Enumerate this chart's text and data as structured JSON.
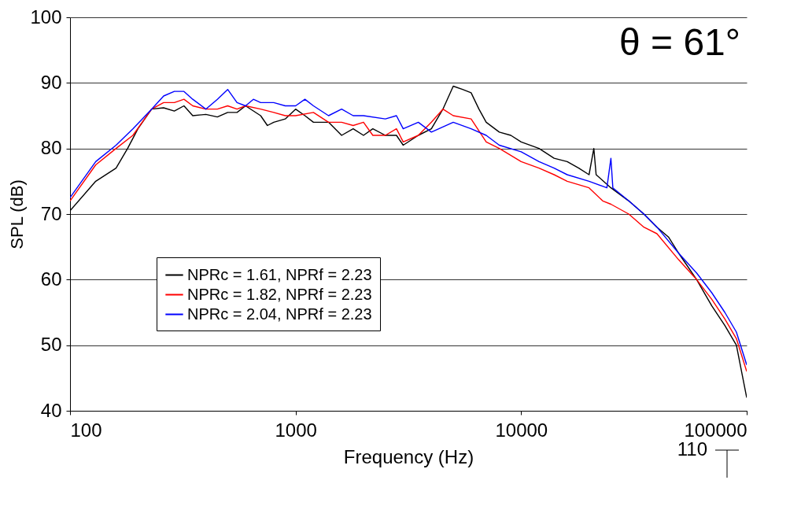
{
  "chart_data": {
    "type": "line",
    "title": "θ = 61°",
    "xlabel": "Frequency (Hz)",
    "ylabel": "SPL (dB)",
    "log": "x",
    "xlim": [
      100,
      100000
    ],
    "xticks": [
      100,
      1000,
      10000,
      100000
    ],
    "ylim": [
      40,
      100
    ],
    "yticks": [
      40,
      50,
      60,
      70,
      80,
      90,
      100
    ],
    "grid": "y",
    "legend": "bottom left",
    "line_style": "solid",
    "marker": "none",
    "annotations": [
      "110"
    ],
    "series": [
      {
        "name": "NPRc = 1.61, NPRf = 2.23",
        "color": "#000000",
        "x": [
          100,
          130,
          160,
          180,
          200,
          230,
          260,
          290,
          320,
          350,
          400,
          450,
          500,
          550,
          600,
          700,
          750,
          800,
          900,
          1000,
          1100,
          1200,
          1400,
          1600,
          1800,
          2000,
          2200,
          2500,
          2800,
          3000,
          3500,
          4000,
          4500,
          5000,
          5500,
          6000,
          6500,
          7000,
          8000,
          9000,
          10000,
          12000,
          14000,
          16000,
          18000,
          20000,
          21000,
          21500,
          25000,
          30000,
          35000,
          40000,
          45000,
          50000,
          60000,
          70000,
          80000,
          90000,
          100000
        ],
        "values": [
          70.5,
          75,
          77,
          80,
          83,
          86,
          86.2,
          85.7,
          86.5,
          85,
          85.2,
          84.8,
          85.5,
          85.5,
          86.5,
          85,
          83.5,
          84,
          84.5,
          86,
          85,
          84,
          84,
          82,
          83,
          82,
          83,
          82,
          82,
          80.5,
          82,
          83,
          86,
          89.5,
          89,
          88.5,
          86,
          84,
          82.5,
          82,
          81,
          80,
          78.5,
          78,
          77,
          76,
          80,
          76,
          74,
          72,
          70,
          68,
          66.5,
          64,
          60,
          56,
          53,
          50,
          42
        ]
      },
      {
        "name": "NPRc = 1.82, NPRf = 2.23",
        "color": "#ff0000",
        "x": [
          100,
          130,
          160,
          190,
          230,
          260,
          290,
          320,
          350,
          400,
          450,
          500,
          550,
          600,
          700,
          800,
          900,
          1000,
          1200,
          1400,
          1600,
          1800,
          2000,
          2200,
          2500,
          2800,
          3000,
          3500,
          4000,
          4500,
          5000,
          6000,
          7000,
          8000,
          10000,
          12000,
          14000,
          16000,
          20000,
          23000,
          25000,
          30000,
          35000,
          40000,
          50000,
          60000,
          70000,
          80000,
          90000,
          100000
        ],
        "values": [
          72,
          77.5,
          80,
          82,
          86,
          87,
          87,
          87.5,
          86.5,
          86,
          86,
          86.5,
          86,
          86.5,
          86,
          85.5,
          85,
          85,
          85.5,
          84,
          84,
          83.5,
          84,
          82,
          82,
          83,
          81,
          82,
          84,
          86,
          85,
          84.5,
          81,
          80,
          78,
          77,
          76,
          75,
          74,
          72,
          71.5,
          70,
          68,
          67,
          63,
          60,
          57,
          54,
          51,
          46
        ]
      },
      {
        "name": "NPRc = 2.04, NPRf = 2.23",
        "color": "#0000ff",
        "x": [
          100,
          130,
          160,
          190,
          230,
          260,
          290,
          320,
          350,
          400,
          450,
          500,
          550,
          600,
          650,
          700,
          800,
          900,
          1000,
          1100,
          1200,
          1400,
          1600,
          1800,
          2000,
          2500,
          2800,
          3000,
          3500,
          4000,
          5000,
          6000,
          7000,
          8000,
          10000,
          12000,
          14000,
          16000,
          20000,
          24000,
          25000,
          25500,
          30000,
          35000,
          40000,
          50000,
          60000,
          70000,
          80000,
          90000,
          100000
        ],
        "values": [
          72.5,
          78,
          80.5,
          83,
          86,
          88,
          88.7,
          88.7,
          87.5,
          86,
          87.5,
          89,
          87,
          86.5,
          87.5,
          87,
          87,
          86.5,
          86.5,
          87.5,
          86.5,
          85,
          86,
          85,
          85,
          84.5,
          85,
          83,
          84,
          82.5,
          84,
          83,
          82,
          80.5,
          79.5,
          78,
          77,
          76,
          75,
          74,
          78.5,
          74,
          72,
          70,
          68,
          64,
          61,
          58,
          55,
          52,
          47
        ]
      }
    ]
  }
}
